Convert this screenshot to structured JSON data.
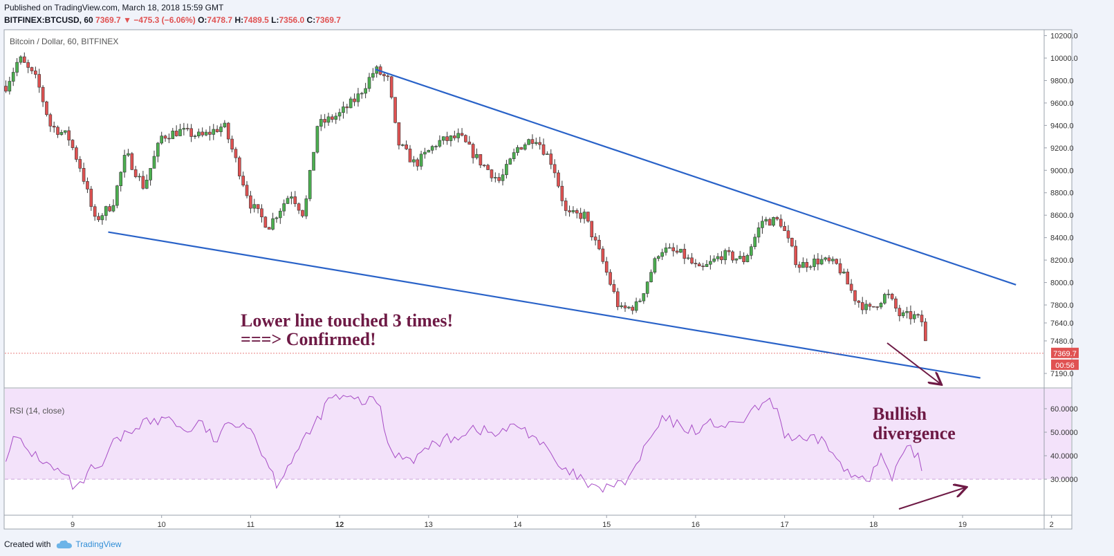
{
  "header": {
    "published": "Published on TradingView.com, March 18, 2018 15:59 GMT",
    "symbol": "BITFINEX:BTCUSD, 60",
    "last": "7369.7",
    "arrow": "▼",
    "change": "−475.3 (−6.06%)",
    "o_label": "O:",
    "o_value": "7478.7",
    "h_label": "H:",
    "h_value": "7489.5",
    "l_label": "L:",
    "l_value": "7356.0",
    "c_label": "C:",
    "c_value": "7369.7"
  },
  "footer": {
    "created_with": "Created with",
    "brand": "TradingView"
  },
  "colors": {
    "up": "#4caf50",
    "down": "#e05252",
    "trendline": "#2962c8",
    "rsi_line": "#a64bc5",
    "rsi_band": "#f3e2fa",
    "annotation": "#6e1a45",
    "price_tag": "#e05252"
  },
  "chart_data": [
    {
      "type": "candlestick",
      "title": "Bitcoin / Dollar, 60, BITFINEX",
      "x_tick_labels": [
        "9",
        "10",
        "11",
        "12",
        "13",
        "14",
        "15",
        "16",
        "17",
        "18",
        "19",
        "2"
      ],
      "x_tick_days": [
        9,
        10,
        11,
        12,
        13,
        14,
        15,
        16,
        17,
        18,
        19,
        20
      ],
      "xlim_days": [
        8.25,
        20.0
      ],
      "y_tick_labels": [
        "10200.0",
        "10000.0",
        "9800.0",
        "9600.0",
        "9400.0",
        "9200.0",
        "9000.0",
        "8800.0",
        "8600.0",
        "8400.0",
        "8200.0",
        "8000.0",
        "7800.0",
        "7640.0",
        "7480.0",
        "7190.0"
      ],
      "y_tick_values": [
        10200,
        10000,
        9800,
        9600,
        9400,
        9200,
        9000,
        8800,
        8600,
        8400,
        8200,
        8000,
        7800,
        7640,
        7480,
        7190
      ],
      "last_price_label": "7369.7",
      "last_price": 7369.7,
      "countdown_label": "00:56",
      "trendlines": [
        {
          "name": "upper",
          "x": [
            12.4,
            19.6
          ],
          "y": [
            9900,
            7980
          ]
        },
        {
          "name": "lower",
          "x": [
            9.4,
            19.2
          ],
          "y": [
            8450,
            7150
          ]
        }
      ],
      "close_path": {
        "x": [
          8.25,
          8.4,
          8.6,
          8.75,
          8.95,
          9.1,
          9.25,
          9.45,
          9.6,
          9.8,
          10.0,
          10.2,
          10.45,
          10.7,
          10.85,
          11.0,
          11.2,
          11.45,
          11.6,
          11.75,
          12.0,
          12.2,
          12.4,
          12.55,
          12.65,
          12.85,
          13.1,
          13.35,
          13.55,
          13.8,
          14.0,
          14.2,
          14.4,
          14.55,
          14.75,
          14.95,
          15.15,
          15.35,
          15.6,
          15.85,
          16.05,
          16.3,
          16.55,
          16.75,
          16.95,
          17.15,
          17.4,
          17.6,
          17.8,
          17.95,
          18.15,
          18.3,
          18.45,
          18.55,
          18.6
        ],
        "y": [
          9750,
          10000,
          9800,
          9400,
          9300,
          9000,
          8550,
          8700,
          9150,
          8850,
          9300,
          9350,
          9300,
          9400,
          9050,
          8700,
          8500,
          8800,
          8600,
          9400,
          9500,
          9650,
          9900,
          9800,
          9250,
          9050,
          9250,
          9300,
          9100,
          8900,
          9200,
          9300,
          9050,
          8600,
          8600,
          8200,
          7750,
          7800,
          8300,
          8250,
          8100,
          8250,
          8200,
          8550,
          8550,
          8150,
          8200,
          8150,
          7850,
          7750,
          7900,
          7700,
          7700,
          7650,
          7370
        ]
      }
    },
    {
      "type": "line",
      "title": "RSI (14, close)",
      "y_tick_labels": [
        "60.0000",
        "50.0000",
        "40.0000",
        "30.0000"
      ],
      "y_tick_values": [
        60,
        50,
        40,
        30
      ],
      "band": [
        30,
        70
      ],
      "rsi_path": {
        "x": [
          8.25,
          8.35,
          8.5,
          8.6,
          8.75,
          8.9,
          9.05,
          9.2,
          9.3,
          9.45,
          9.6,
          9.8,
          9.95,
          10.1,
          10.25,
          10.45,
          10.6,
          10.75,
          10.9,
          11.0,
          11.15,
          11.3,
          11.45,
          11.6,
          11.75,
          11.9,
          12.1,
          12.3,
          12.45,
          12.55,
          12.7,
          12.85,
          13.05,
          13.3,
          13.5,
          13.75,
          14.0,
          14.2,
          14.4,
          14.5,
          14.65,
          14.8,
          14.9,
          15.05,
          15.15,
          15.3,
          15.45,
          15.65,
          15.85,
          16.0,
          16.2,
          16.4,
          16.6,
          16.75,
          16.9,
          17.0,
          17.2,
          17.45,
          17.6,
          17.75,
          17.9,
          17.95,
          18.1,
          18.2,
          18.3,
          18.4,
          18.5,
          18.55
        ],
        "y": [
          40,
          48,
          42,
          40,
          35,
          32,
          25,
          34,
          33,
          45,
          49,
          55,
          54,
          57,
          50,
          54,
          46,
          53,
          55,
          52,
          40,
          28,
          38,
          46,
          55,
          65,
          64,
          63,
          63,
          42,
          40,
          39,
          45,
          48,
          52,
          49,
          53,
          48,
          39,
          33,
          32,
          27,
          25,
          28,
          27,
          33,
          45,
          56,
          52,
          51,
          54,
          52,
          57,
          62,
          62,
          49,
          46,
          47,
          37,
          31,
          32,
          31,
          40,
          29,
          38,
          43,
          40,
          32
        ],
        "note": ""
      }
    }
  ],
  "annotations": {
    "lower_line_l1": "Lower line touched 3 times!",
    "lower_line_l2": "===> Confirmed!",
    "bullish_l1": "Bullish",
    "bullish_l2": "divergence"
  }
}
